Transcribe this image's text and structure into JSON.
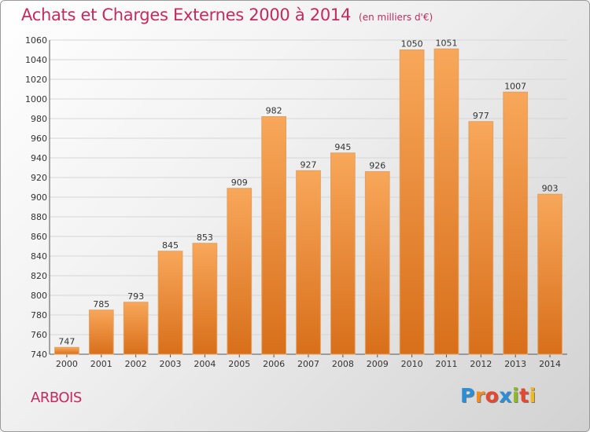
{
  "title": "Achats et Charges Externes 2000 à 2014",
  "subtitle": "(en milliers d'€)",
  "location": "ARBOIS",
  "logo": {
    "letters": [
      "P",
      "r",
      "o",
      "x",
      "i",
      "t",
      "i"
    ],
    "colors": [
      "#2a8fd6",
      "#f28c1e",
      "#e8462e",
      "#2a8fd6",
      "#8cbc1e",
      "#e8462e",
      "#f2b81e"
    ]
  },
  "colors": {
    "title": "#c42a5e",
    "bar_light": "#f8a75a",
    "bar_dark": "#d86f1a",
    "grid": "#d6d6d6"
  },
  "chart_data": {
    "type": "bar",
    "title": "Achats et Charges Externes 2000 à 2014",
    "subtitle": "(en milliers d'€)",
    "xlabel": "",
    "ylabel": "",
    "categories": [
      "2000",
      "2001",
      "2002",
      "2003",
      "2004",
      "2005",
      "2006",
      "2007",
      "2008",
      "2009",
      "2010",
      "2011",
      "2012",
      "2013",
      "2014"
    ],
    "values": [
      747,
      785,
      793,
      845,
      853,
      909,
      982,
      927,
      945,
      926,
      1050,
      1051,
      977,
      1007,
      903
    ],
    "ylim": [
      740,
      1060
    ],
    "yticks": [
      740,
      760,
      780,
      800,
      820,
      840,
      860,
      880,
      900,
      920,
      940,
      960,
      980,
      1000,
      1020,
      1040,
      1060
    ],
    "grid": true,
    "legend": "none"
  }
}
